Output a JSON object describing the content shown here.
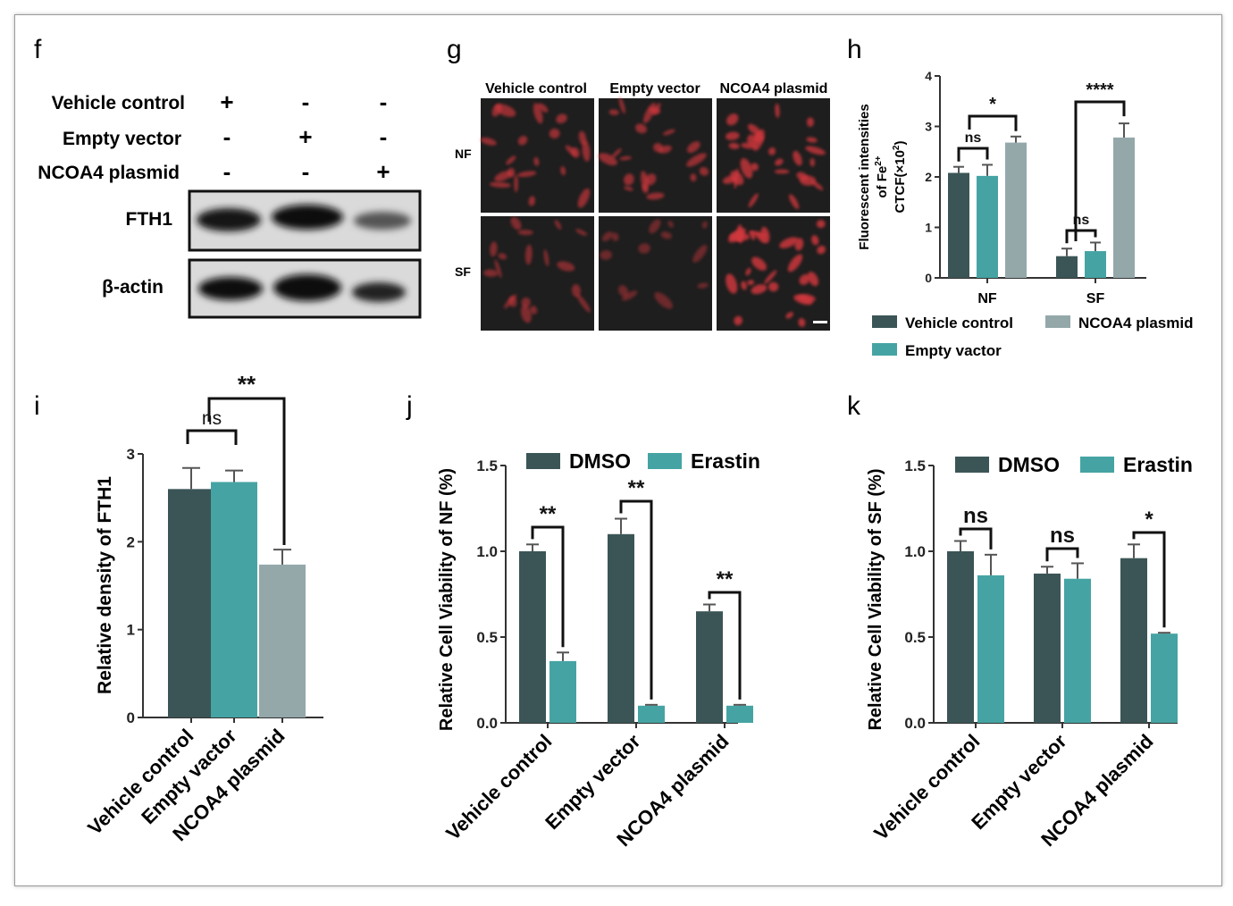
{
  "colors": {
    "vehicle": "#3b5556",
    "empty": "#45a4a3",
    "ncoa4": "#94a8aa",
    "dmso": "#3b5556",
    "erastin": "#45a4a3",
    "cell_red": "#d2373c",
    "panel_bg": "#1e1e1e"
  },
  "panel_letters": {
    "f": "f",
    "g": "g",
    "h": "h",
    "i": "i",
    "j": "j",
    "k": "k"
  },
  "western": {
    "row_labels": [
      "Vehicle control",
      "Empty vector",
      "NCOA4 plasmid"
    ],
    "signs": [
      [
        "+",
        "-",
        "-"
      ],
      [
        "-",
        "+",
        "-"
      ],
      [
        "-",
        "-",
        "+"
      ]
    ],
    "bands": [
      "FTH1",
      "β-actin"
    ]
  },
  "micro": {
    "columns": [
      "Vehicle control",
      "Empty vector",
      "NCOA4 plasmid"
    ],
    "rows": [
      "NF",
      "SF"
    ]
  },
  "chart_data": [
    {
      "panel": "h",
      "type": "bar",
      "categories": [
        "NF",
        "SF"
      ],
      "ylabel_lines": [
        "Fluorescent intensities",
        "of Fe",
        "CTCF(×10",
        ")"
      ],
      "ylabel_sup": [
        "2+",
        "2"
      ],
      "ylim": [
        0,
        4
      ],
      "yticks": [
        "0",
        "1",
        "2",
        "3",
        "4"
      ],
      "series": [
        {
          "name": "Vehicle control",
          "values": [
            2.08,
            0.43
          ],
          "errors": [
            0.12,
            0.15
          ]
        },
        {
          "name": "Empty vactor",
          "values": [
            2.02,
            0.53
          ],
          "errors": [
            0.22,
            0.17
          ]
        },
        {
          "name": "NCOA4 plasmid",
          "values": [
            2.68,
            2.78
          ],
          "errors": [
            0.12,
            0.28
          ]
        }
      ],
      "significance": [
        "ns",
        "*",
        "ns",
        "****"
      ],
      "legend": "bottom"
    },
    {
      "panel": "i",
      "type": "bar",
      "categories": [
        "Vehicle control",
        "Empty vactor",
        "NCOA4 plasmid"
      ],
      "ylabel": "Relative density of FTH1",
      "ylim": [
        0,
        3
      ],
      "yticks": [
        "0",
        "1",
        "2",
        "3"
      ],
      "values": [
        2.6,
        2.68,
        1.74
      ],
      "errors": [
        0.24,
        0.13,
        0.17
      ],
      "significance": [
        "ns",
        "**"
      ]
    },
    {
      "panel": "j",
      "type": "bar",
      "categories": [
        "Vehicle control",
        "Empty vector",
        "NCOA4 plasmid"
      ],
      "ylabel": "Relative Cell Viability of NF (%)",
      "ylim": [
        0,
        1.5
      ],
      "yticks": [
        "0.0",
        "0.5",
        "1.0",
        "1.5"
      ],
      "series": [
        {
          "name": "DMSO",
          "values": [
            1.0,
            1.1,
            0.65
          ],
          "errors": [
            0.04,
            0.09,
            0.04
          ]
        },
        {
          "name": "Erastin",
          "values": [
            0.36,
            0.1,
            0.1
          ],
          "errors": [
            0.05,
            0.005,
            0.005
          ]
        }
      ],
      "significance": [
        "**",
        "**",
        "**"
      ],
      "legend": "top"
    },
    {
      "panel": "k",
      "type": "bar",
      "categories": [
        "Vehicle control",
        "Empty vector",
        "NCOA4 plasmid"
      ],
      "ylabel": "Relative Cell Viability of SF (%)",
      "ylim": [
        0,
        1.5
      ],
      "yticks": [
        "0.0",
        "0.5",
        "1.0",
        "1.5"
      ],
      "series": [
        {
          "name": "DMSO",
          "values": [
            1.0,
            0.87,
            0.96
          ],
          "errors": [
            0.06,
            0.04,
            0.08
          ]
        },
        {
          "name": "Erastin",
          "values": [
            0.86,
            0.84,
            0.52
          ],
          "errors": [
            0.12,
            0.09,
            0.005
          ]
        }
      ],
      "significance": [
        "ns",
        "ns",
        "*"
      ],
      "legend": "top"
    }
  ]
}
